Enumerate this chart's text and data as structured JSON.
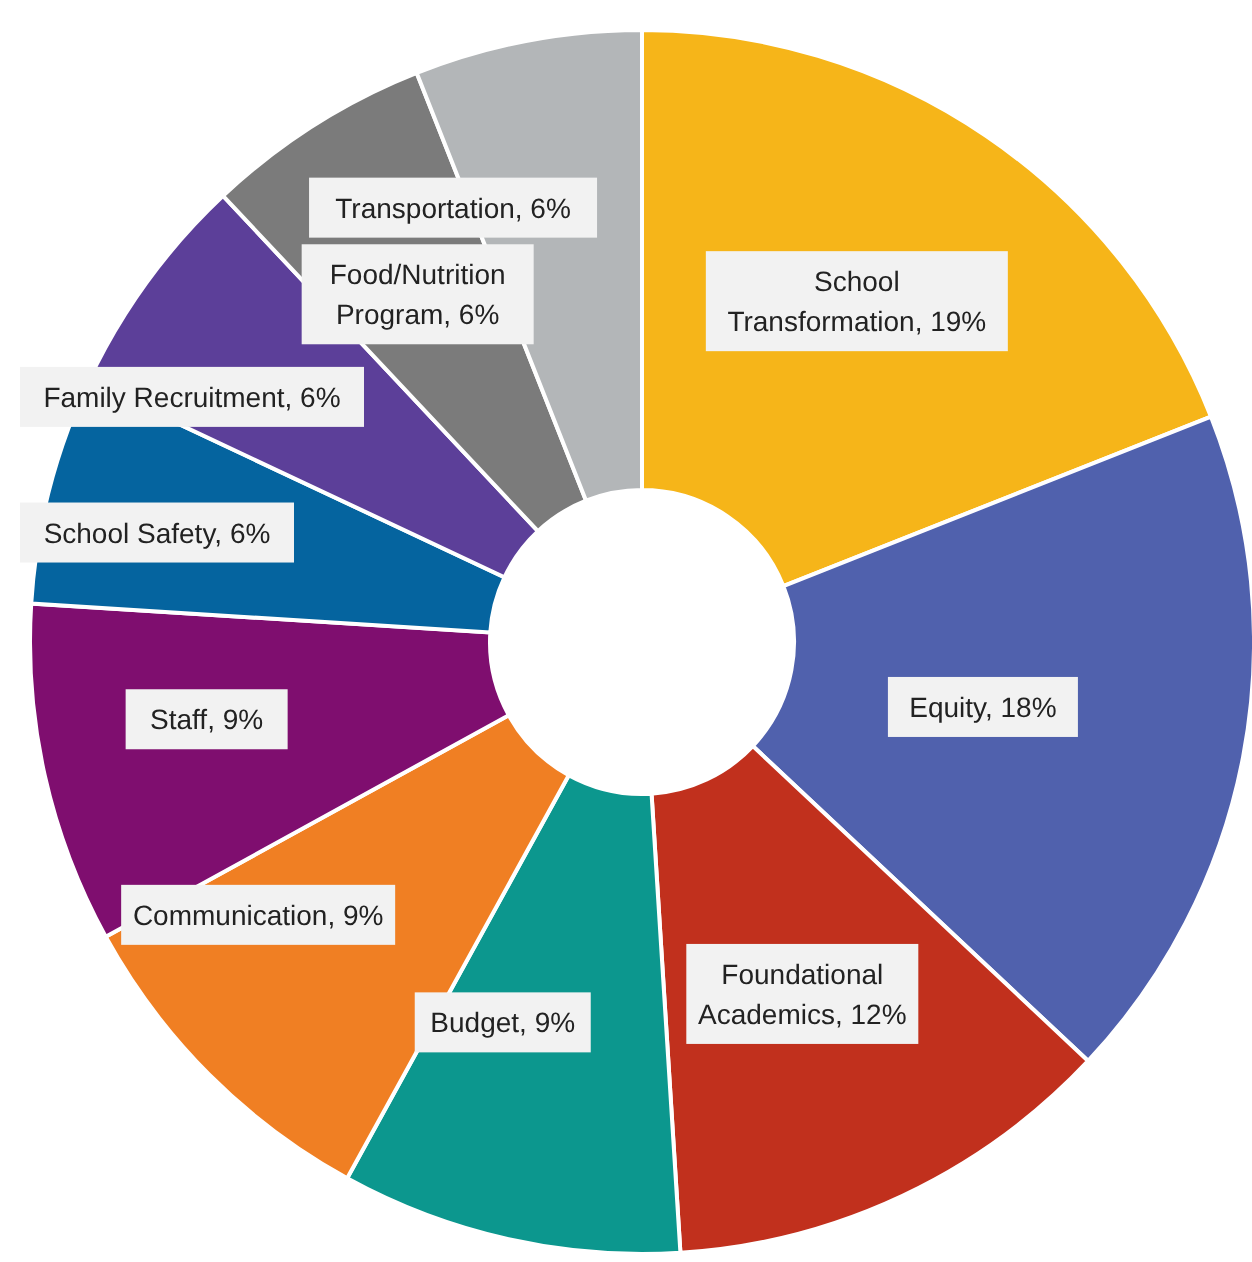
{
  "chart_data": {
    "type": "donut",
    "categories": [
      "School Transformation",
      "Equity",
      "Foundational Academics",
      "Budget",
      "Communication",
      "Staff",
      "School Safety",
      "Family Recruitment",
      "Food/Nutrition Program",
      "Transportation"
    ],
    "values": [
      19,
      18,
      12,
      9,
      9,
      9,
      6,
      6,
      6,
      6
    ],
    "value_labels": [
      ", 19%",
      ", 18%",
      ", 12%",
      ", 9%",
      ", 9%",
      ", 9%",
      ", 6%",
      ", 6%",
      ", 6%",
      ", 6%"
    ],
    "colors": [
      "#f6b519",
      "#5061ad",
      "#c1301d",
      "#0c978e",
      "#f07f23",
      "#7f0e6f",
      "#05649f",
      "#5c3f99",
      "#7b7b7b",
      "#b3b6b8"
    ],
    "legend": false
  }
}
